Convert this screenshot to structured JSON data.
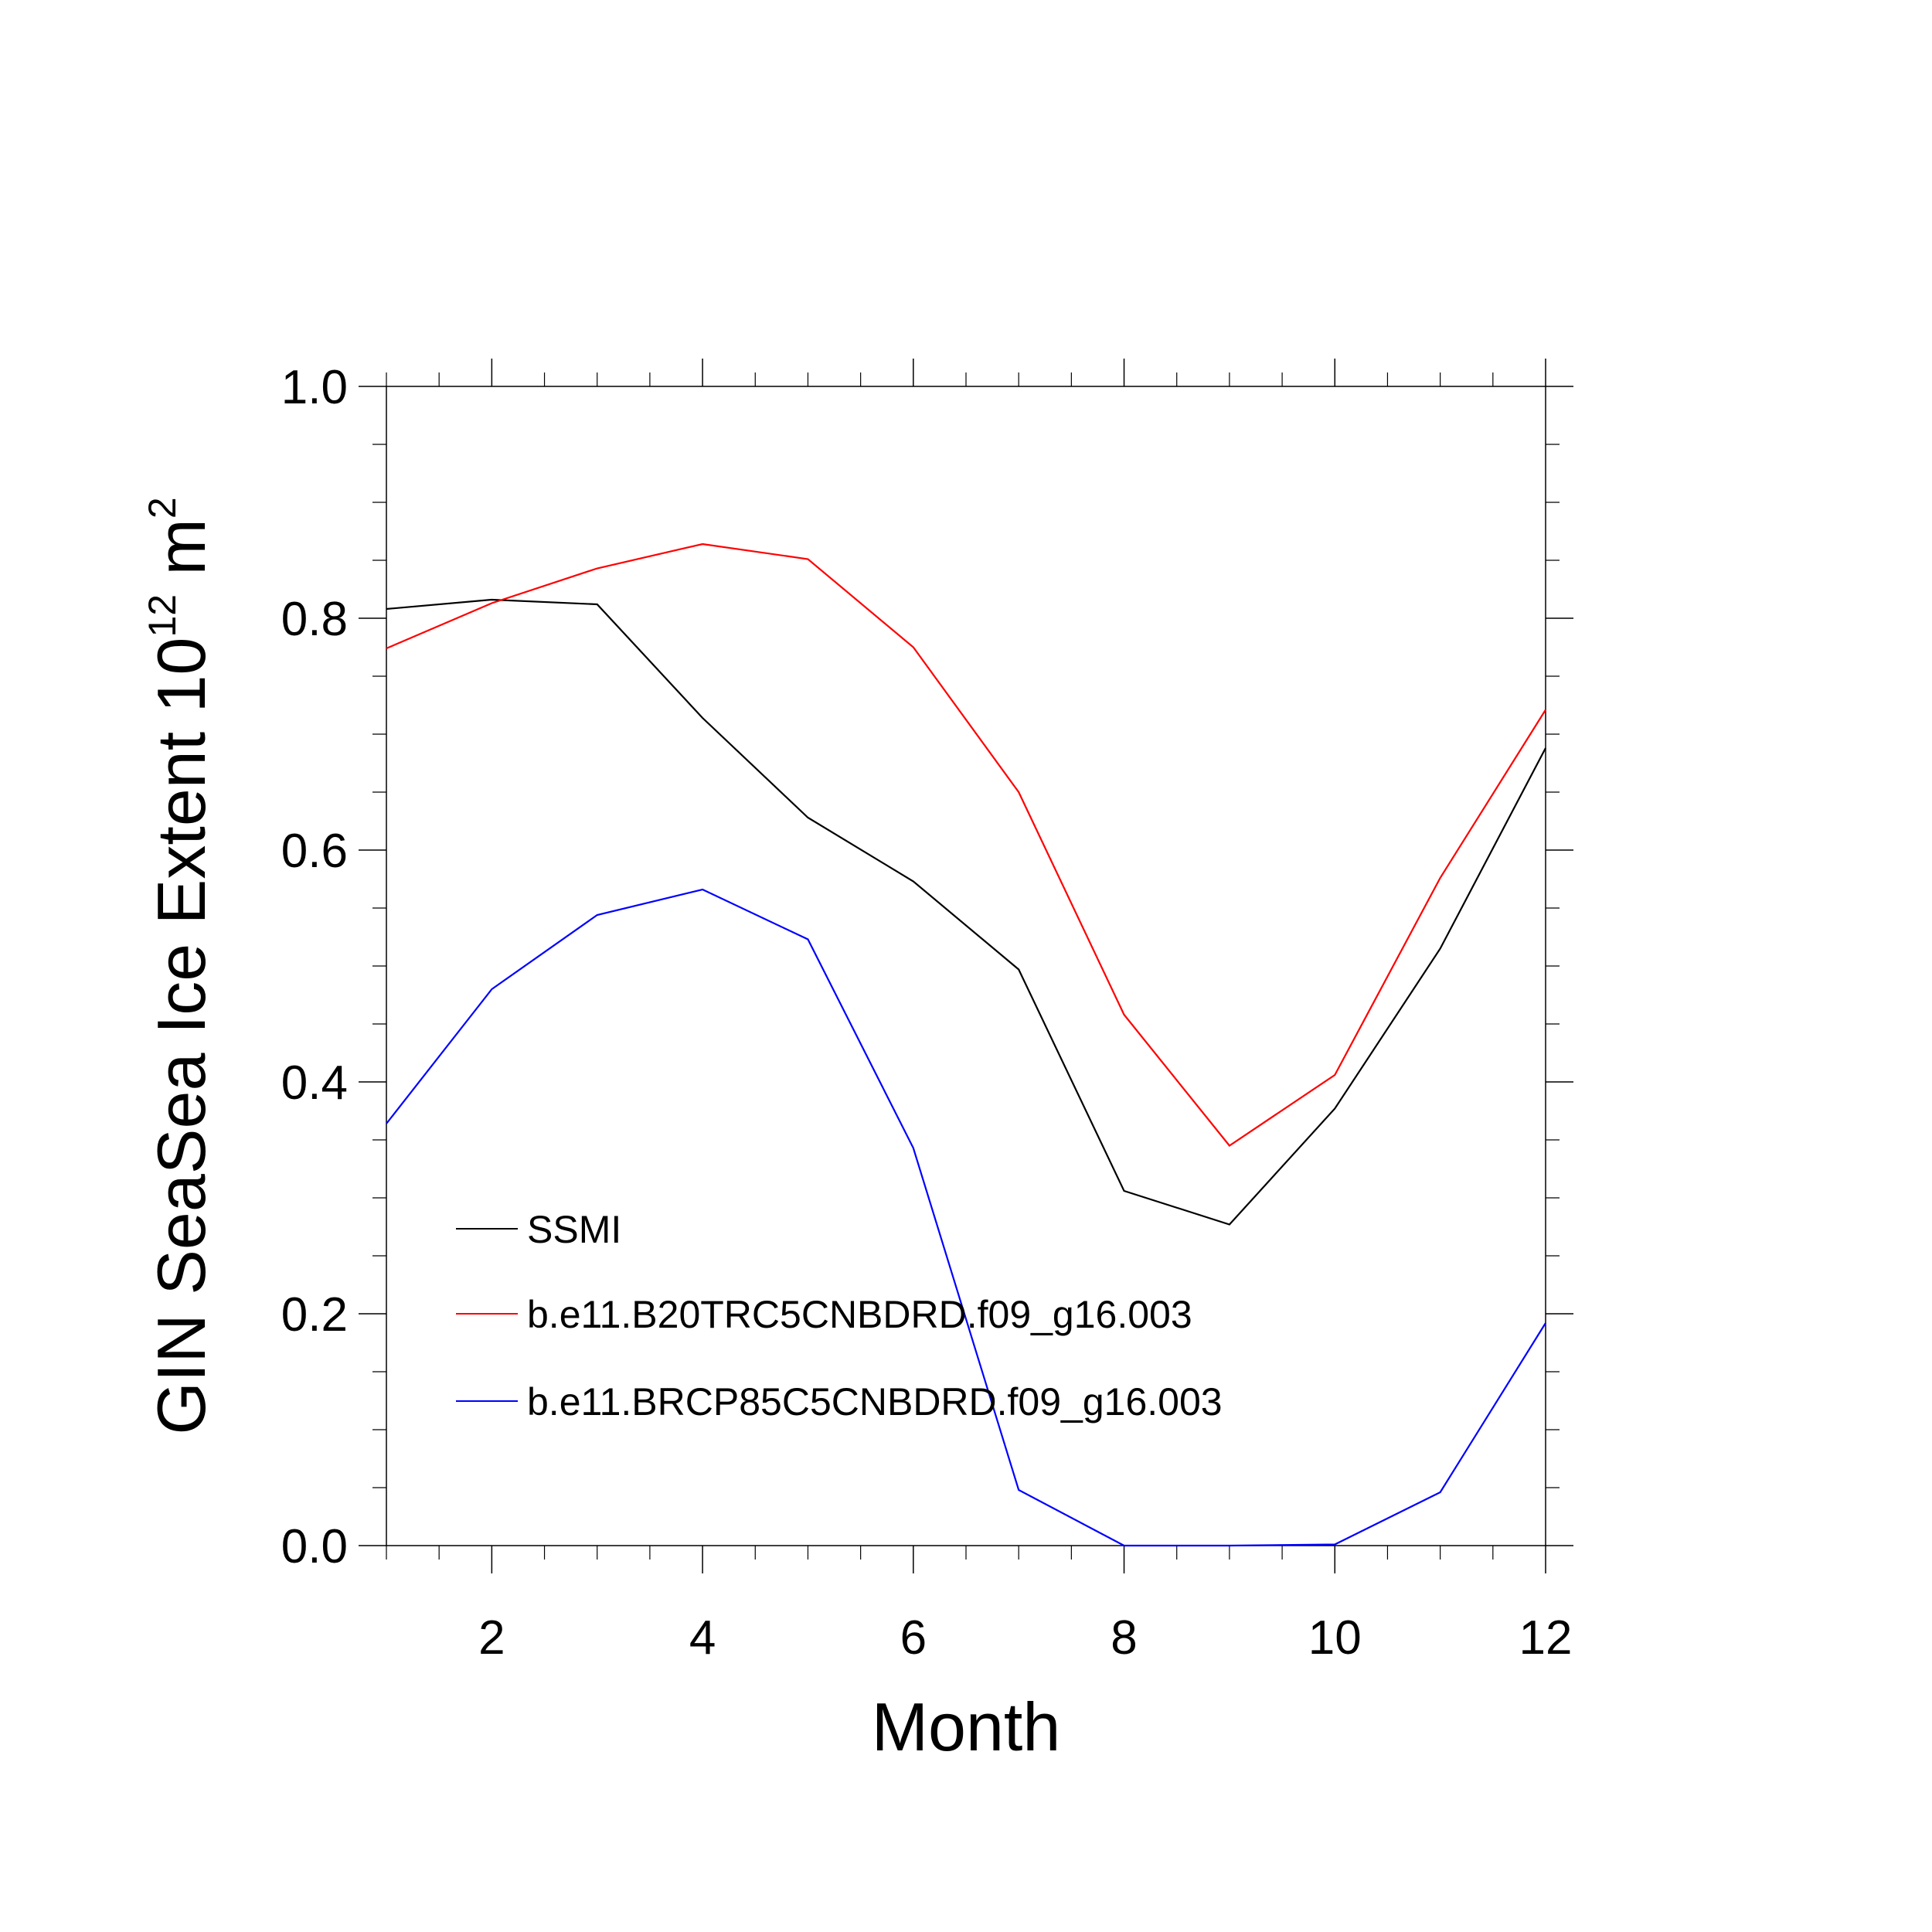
{
  "chart_data": {
    "type": "line",
    "xlabel": "Month",
    "ylabel": {
      "main": "GIN SeaSea Ice Extent 10",
      "exp1": "12",
      "mid": " m",
      "exp2": "2"
    },
    "xlim": [
      1,
      12
    ],
    "ylim": [
      0.0,
      1.0
    ],
    "x_ticks": [
      2,
      4,
      6,
      8,
      10,
      12
    ],
    "x_tick_labels": [
      "2",
      "4",
      "6",
      "8",
      "10",
      "12"
    ],
    "y_ticks": [
      0.0,
      0.2,
      0.4,
      0.6,
      0.8,
      1.0
    ],
    "y_tick_labels": [
      "0.0",
      "0.2",
      "0.4",
      "0.6",
      "0.8",
      "1.0"
    ],
    "grid": false,
    "legend_position": "inside-bottom-left",
    "x": [
      1,
      2,
      3,
      4,
      5,
      6,
      7,
      8,
      9,
      10,
      11,
      12
    ],
    "series": [
      {
        "name": "SSMI",
        "color": "#000000",
        "values": [
          0.808,
          0.816,
          0.812,
          0.714,
          0.628,
          0.573,
          0.497,
          0.306,
          0.277,
          0.377,
          0.515,
          0.688
        ]
      },
      {
        "name": "b.e11.B20TRC5CNBDRD.f09_g16.003",
        "color": "#ff0000",
        "values": [
          0.774,
          0.813,
          0.843,
          0.864,
          0.851,
          0.775,
          0.65,
          0.458,
          0.345,
          0.406,
          0.576,
          0.721
        ]
      },
      {
        "name": "b.e11.BRCP85C5CNBDRD.f09_g16.003",
        "color": "#0000ff",
        "values": [
          0.364,
          0.48,
          0.544,
          0.566,
          0.523,
          0.343,
          0.048,
          0.0,
          0.0,
          0.001,
          0.046,
          0.192
        ]
      }
    ]
  }
}
